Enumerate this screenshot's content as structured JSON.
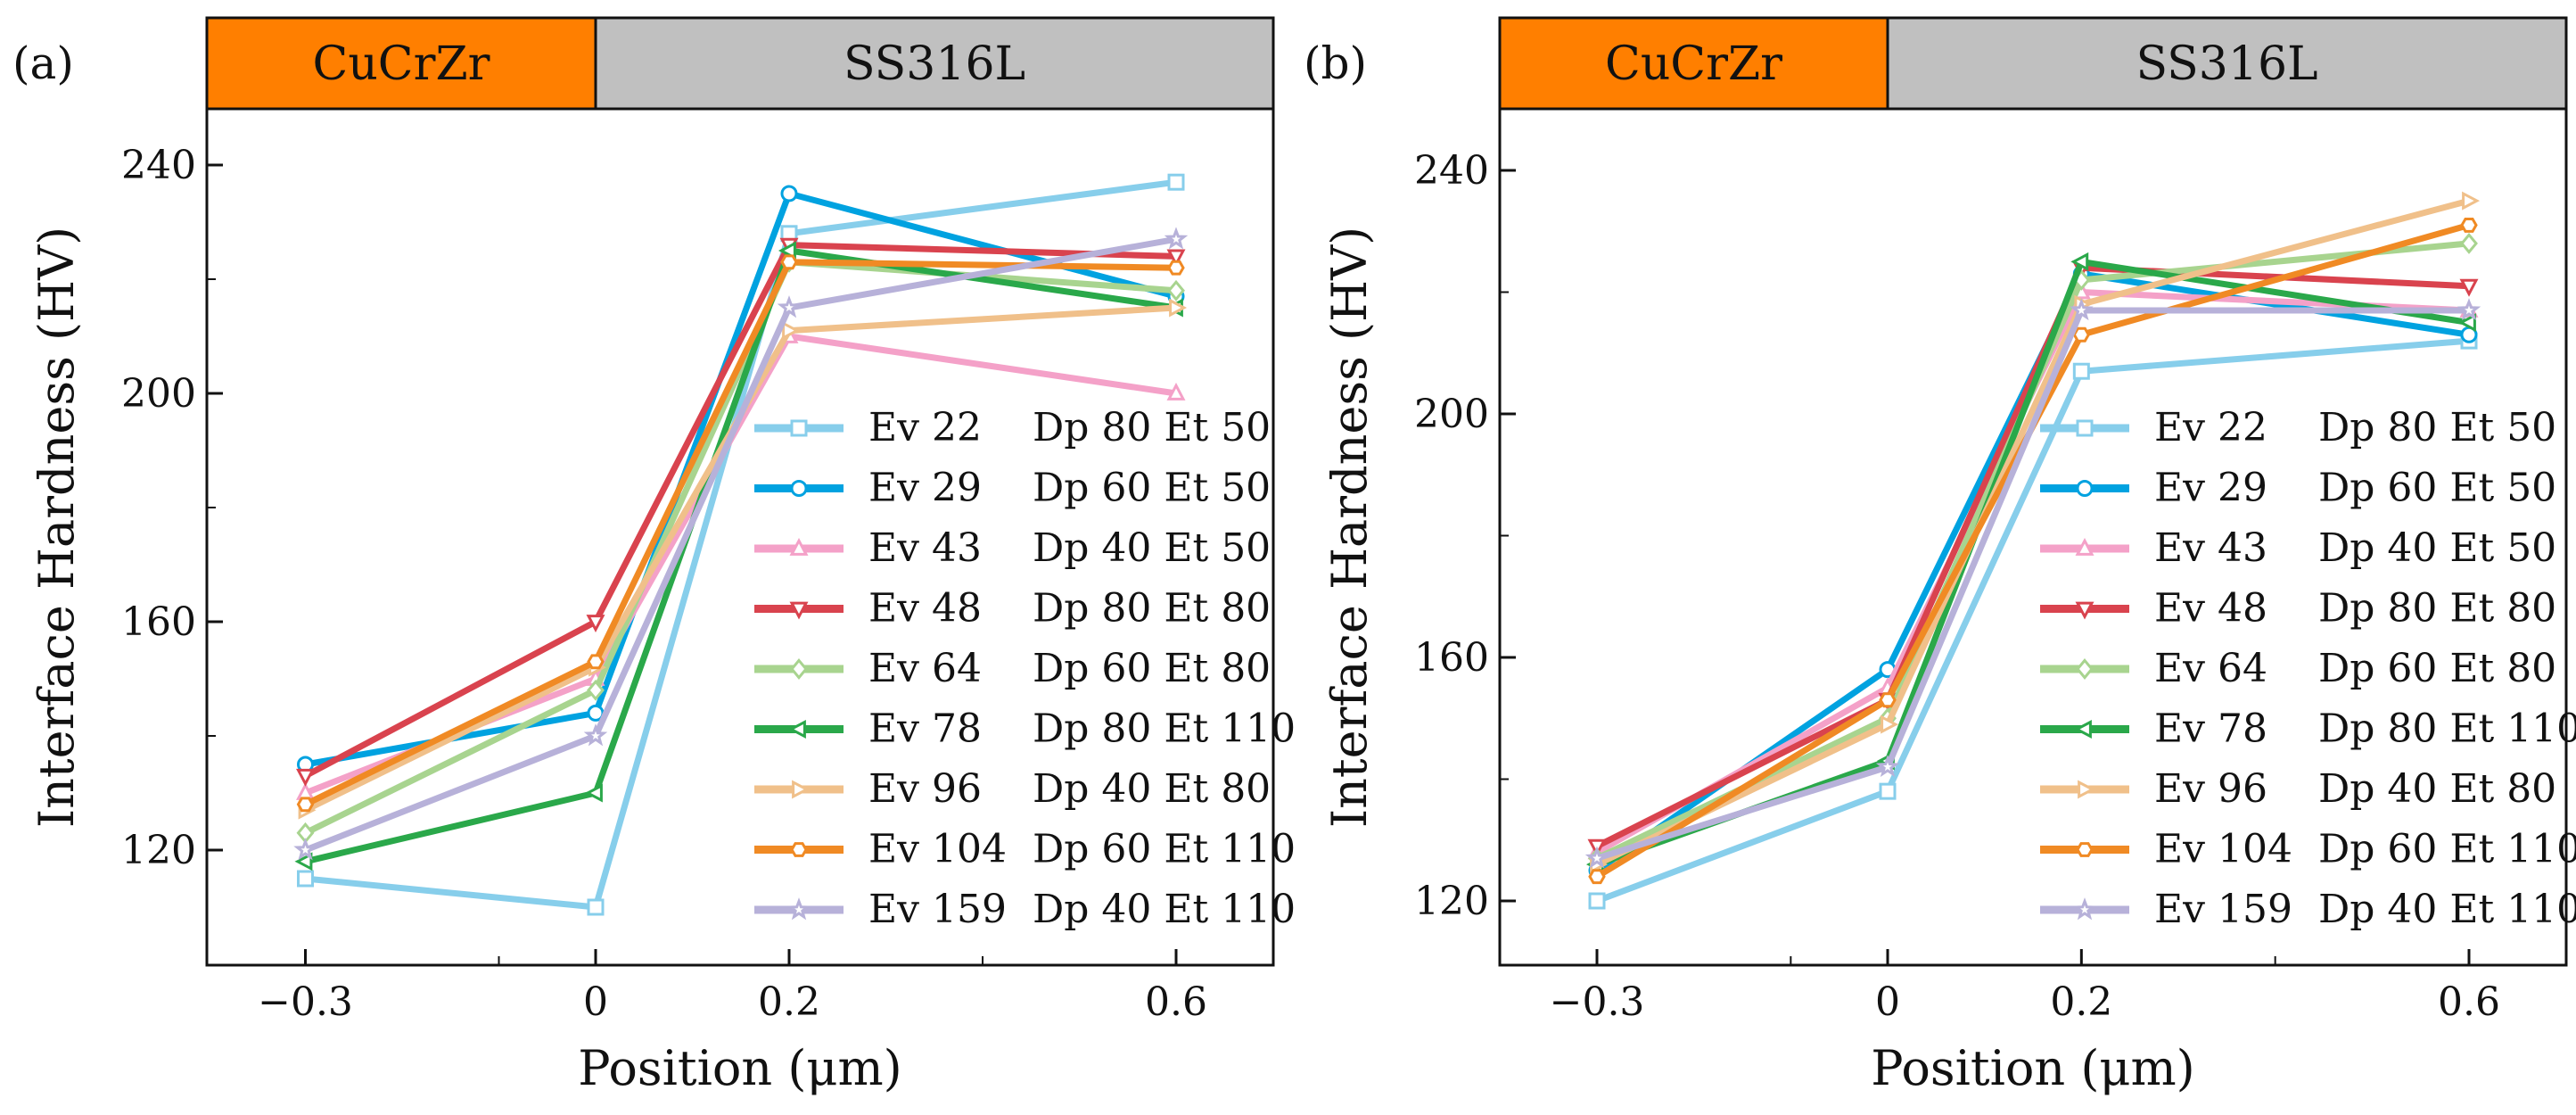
{
  "figure": {
    "panels": [
      "(a)",
      "(b)"
    ],
    "band": {
      "left_label": "CuCrZr",
      "right_label": "SS316L",
      "left_color": "#ff7f00",
      "right_color": "#c0c0c0"
    },
    "xlabel": "Position (μm)",
    "ylabel": "Interface Hardness (HV)"
  },
  "chart_data": [
    {
      "type": "line",
      "panel": "(a)",
      "x": [
        -0.3,
        0,
        0.2,
        0.6
      ],
      "x_tick_labels": [
        "−0.3",
        "0",
        "0.2",
        "0.6"
      ],
      "y_ticks": [
        120,
        160,
        200,
        240
      ],
      "xlim": [
        -0.4,
        0.7
      ],
      "ylim": [
        100,
        250
      ],
      "xlabel": "Position (μm)",
      "ylabel": "Interface Hardness (HV)",
      "legend_position": "bottom-right",
      "series": [
        {
          "name": "Ev 22",
          "params": "Dp 80 Et 50",
          "color": "#87ceeb",
          "marker": "square",
          "values": [
            115,
            110,
            228,
            237
          ]
        },
        {
          "name": "Ev 29",
          "params": "Dp 60 Et 50",
          "color": "#00a2e0",
          "marker": "circle",
          "values": [
            135,
            144,
            235,
            217
          ]
        },
        {
          "name": "Ev 43",
          "params": "Dp 40 Et 50",
          "color": "#f4a1c8",
          "marker": "triangle-up",
          "values": [
            130,
            150,
            210,
            200
          ]
        },
        {
          "name": "Ev 48",
          "params": "Dp 80 Et 80",
          "color": "#d9434e",
          "marker": "triangle-down",
          "values": [
            133,
            160,
            226,
            224
          ]
        },
        {
          "name": "Ev 64",
          "params": "Dp 60 Et 80",
          "color": "#a8d48f",
          "marker": "diamond",
          "values": [
            123,
            148,
            223,
            218
          ]
        },
        {
          "name": "Ev 78",
          "params": "Dp 80 Et 110",
          "color": "#2aa84a",
          "marker": "triangle-left",
          "values": [
            118,
            130,
            225,
            215
          ]
        },
        {
          "name": "Ev 96",
          "params": "Dp 40 Et 80",
          "color": "#f0c08a",
          "marker": "triangle-right",
          "values": [
            127,
            152,
            211,
            215
          ]
        },
        {
          "name": "Ev 104",
          "params": "Dp 60 Et 110",
          "color": "#f08a24",
          "marker": "hexagon",
          "values": [
            128,
            153,
            223,
            222
          ]
        },
        {
          "name": "Ev 159",
          "params": "Dp 40 Et 110",
          "color": "#b7b1d9",
          "marker": "star",
          "values": [
            120,
            140,
            215,
            227
          ]
        }
      ]
    },
    {
      "type": "line",
      "panel": "(b)",
      "x": [
        -0.3,
        0,
        0.2,
        0.6
      ],
      "x_tick_labels": [
        "−0.3",
        "0",
        "0.2",
        "0.6"
      ],
      "y_ticks": [
        120,
        160,
        200,
        240
      ],
      "xlim": [
        -0.4,
        0.7
      ],
      "ylim": [
        110,
        250
      ],
      "xlabel": "Position (μm)",
      "ylabel": "Interface Hardness (HV)",
      "legend_position": "bottom-right",
      "series": [
        {
          "name": "Ev 22",
          "params": "Dp 80 Et 50",
          "color": "#87ceeb",
          "marker": "square",
          "values": [
            120,
            138,
            207,
            212
          ]
        },
        {
          "name": "Ev 29",
          "params": "Dp 60 Et 50",
          "color": "#00a2e0",
          "marker": "circle",
          "values": [
            125,
            158,
            223,
            213
          ]
        },
        {
          "name": "Ev 43",
          "params": "Dp 40 Et 50",
          "color": "#f4a1c8",
          "marker": "triangle-up",
          "values": [
            128,
            155,
            220,
            217
          ]
        },
        {
          "name": "Ev 48",
          "params": "Dp 80 Et 80",
          "color": "#d9434e",
          "marker": "triangle-down",
          "values": [
            129,
            153,
            224,
            221
          ]
        },
        {
          "name": "Ev 64",
          "params": "Dp 60 Et 80",
          "color": "#a8d48f",
          "marker": "diamond",
          "values": [
            127,
            150,
            222,
            228
          ]
        },
        {
          "name": "Ev 78",
          "params": "Dp 80 Et 110",
          "color": "#2aa84a",
          "marker": "triangle-left",
          "values": [
            126,
            143,
            225,
            215
          ]
        },
        {
          "name": "Ev 96",
          "params": "Dp 40 Et 80",
          "color": "#f0c08a",
          "marker": "triangle-right",
          "values": [
            126,
            149,
            218,
            235
          ]
        },
        {
          "name": "Ev 104",
          "params": "Dp 60 Et 110",
          "color": "#f08a24",
          "marker": "hexagon",
          "values": [
            124,
            153,
            213,
            231
          ]
        },
        {
          "name": "Ev 159",
          "params": "Dp 40 Et 110",
          "color": "#b7b1d9",
          "marker": "star",
          "values": [
            127,
            142,
            217,
            217
          ]
        }
      ]
    }
  ]
}
